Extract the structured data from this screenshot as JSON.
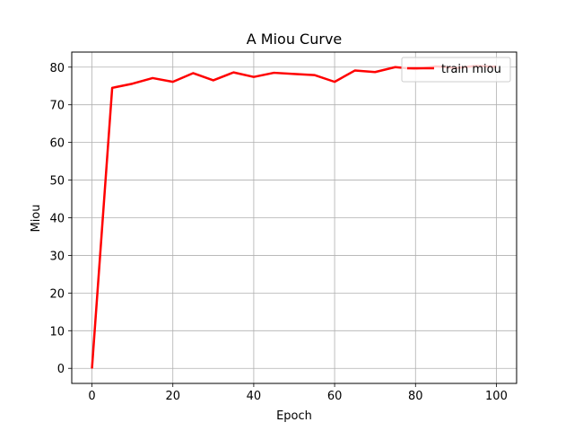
{
  "chart_data": {
    "type": "line",
    "title": "A Miou Curve",
    "xlabel": "Epoch",
    "ylabel": "Miou",
    "xlim": [
      -5,
      105
    ],
    "ylim": [
      -4,
      84
    ],
    "xticks": [
      0,
      20,
      40,
      60,
      80,
      100
    ],
    "yticks": [
      0,
      10,
      20,
      30,
      40,
      50,
      60,
      70,
      80
    ],
    "grid": true,
    "legend_position": "top-right",
    "series": [
      {
        "name": "train miou",
        "color": "#ff0000",
        "x": [
          0,
          5,
          10,
          15,
          20,
          25,
          30,
          35,
          40,
          45,
          50,
          55,
          60,
          65,
          70,
          75,
          80,
          85,
          90,
          95,
          100
        ],
        "y": [
          0,
          74.5,
          75.6,
          77.1,
          76.1,
          78.4,
          76.5,
          78.6,
          77.4,
          78.5,
          78.2,
          77.9,
          76.1,
          79.1,
          78.7,
          80.0,
          79.5,
          80.2,
          79.8,
          80.3,
          80.1
        ]
      }
    ]
  }
}
